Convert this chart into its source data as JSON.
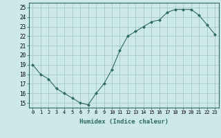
{
  "x": [
    0,
    1,
    2,
    3,
    4,
    5,
    6,
    7,
    8,
    9,
    10,
    11,
    12,
    13,
    14,
    15,
    16,
    17,
    18,
    19,
    20,
    21,
    22,
    23
  ],
  "y": [
    19,
    18,
    17.5,
    16.5,
    16,
    15.5,
    15,
    14.8,
    16,
    17,
    18.5,
    20.5,
    22,
    22.5,
    23,
    23.5,
    23.7,
    24.5,
    24.8,
    24.8,
    24.8,
    24.2,
    23.2,
    22.2
  ],
  "line_color": "#2d6b5e",
  "marker": "D",
  "marker_size": 2,
  "bg_color": "#cce8e8",
  "grid_color": "#aacccc",
  "xlabel": "Humidex (Indice chaleur)",
  "ylabel_ticks": [
    15,
    16,
    17,
    18,
    19,
    20,
    21,
    22,
    23,
    24,
    25
  ],
  "xlim": [
    -0.5,
    23.5
  ],
  "ylim": [
    14.5,
    25.5
  ],
  "title": ""
}
